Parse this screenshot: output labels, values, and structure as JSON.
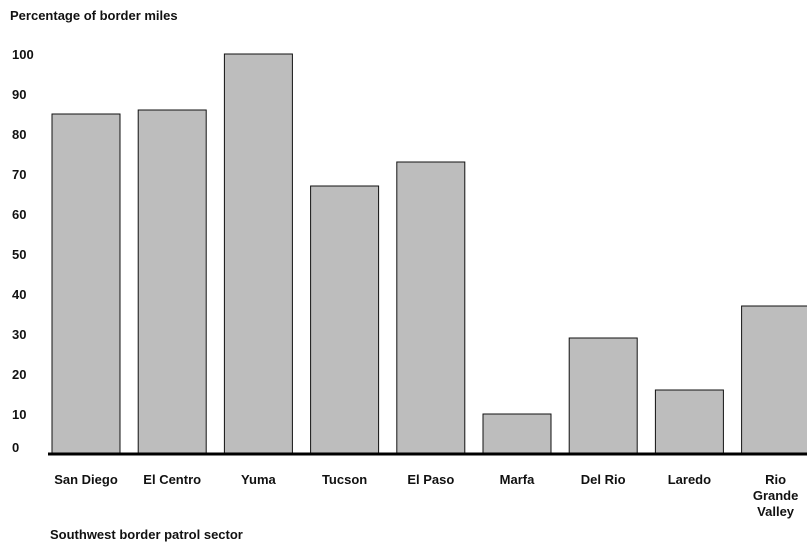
{
  "chart_data": {
    "type": "bar",
    "title": "",
    "ylabel": "Percentage of border miles",
    "xlabel": "Southwest border patrol sector",
    "ylim": [
      0,
      100
    ],
    "yticks": [
      0,
      10,
      20,
      30,
      40,
      50,
      60,
      70,
      80,
      90,
      100
    ],
    "categories": [
      "San Diego",
      "El Centro",
      "Yuma",
      "Tucson",
      "El Paso",
      "Marfa",
      "Del Rio",
      "Laredo",
      "Rio Grande Valley"
    ],
    "category_lines": [
      [
        "San Diego"
      ],
      [
        "El Centro"
      ],
      [
        "Yuma"
      ],
      [
        "Tucson"
      ],
      [
        "El Paso"
      ],
      [
        "Marfa"
      ],
      [
        "Del Rio"
      ],
      [
        "Laredo"
      ],
      [
        "Rio",
        "Grande",
        "Valley"
      ]
    ],
    "values": [
      85,
      86,
      100,
      67,
      73,
      10,
      29,
      16,
      37
    ],
    "grid": false,
    "colors": {
      "bar_fill": "#bdbdbd",
      "bar_stroke": "#111111",
      "axis": "#000000"
    }
  }
}
